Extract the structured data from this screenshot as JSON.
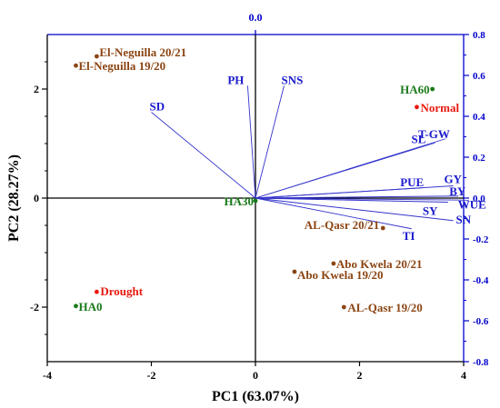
{
  "chart_data": {
    "type": "biplot",
    "xlabel": "PC1 (63.07%)",
    "ylabel": "PC2 (28.27%)",
    "xlim": [
      -4,
      4
    ],
    "ylim": [
      -3,
      3
    ],
    "xticks": [
      -4,
      -2,
      0,
      2,
      4
    ],
    "yticks": [
      -2,
      0,
      2
    ],
    "top_axis_label": "0.0",
    "right_lim": [
      -0.8,
      0.8
    ],
    "right_ticks": [
      "-0.8",
      "-0.6",
      "-0.4",
      "-0.2",
      "0.0",
      "0.2",
      "0.4",
      "0.6",
      "0.8"
    ],
    "scores": [
      {
        "label": "El-Neguilla 20/21",
        "x": -3.05,
        "y": 2.6,
        "color": "#8b4513"
      },
      {
        "label": "El-Neguilla 19/20",
        "x": -3.45,
        "y": 2.43,
        "color": "#8b4513"
      },
      {
        "label": "HA60",
        "x": 3.4,
        "y": 2.0,
        "color": "#1a7a1a"
      },
      {
        "label": "Normal",
        "x": 3.1,
        "y": 1.67,
        "color": "#e8190f"
      },
      {
        "label": "HA30",
        "x": 0.0,
        "y": -0.05,
        "color": "#1a7a1a"
      },
      {
        "label": "AL-Qasr 20/21",
        "x": 2.45,
        "y": -0.55,
        "color": "#8b4513"
      },
      {
        "label": "Abo Kwela 20/21",
        "x": 1.5,
        "y": -1.2,
        "color": "#8b4513"
      },
      {
        "label": "Abo Kwela 19/20",
        "x": 0.75,
        "y": -1.35,
        "color": "#8b4513"
      },
      {
        "label": "Drought",
        "x": -3.05,
        "y": -1.72,
        "color": "#e8190f"
      },
      {
        "label": "HA0",
        "x": -3.45,
        "y": -1.98,
        "color": "#1a7a1a"
      },
      {
        "label": "AL-Qasr 19/20",
        "x": 1.7,
        "y": -2.0,
        "color": "#8b4513"
      }
    ],
    "loadings": [
      {
        "label": "PH",
        "x": -0.03,
        "y": 0.55
      },
      {
        "label": "SNS",
        "x": 0.11,
        "y": 0.55
      },
      {
        "label": "SD",
        "x": -0.4,
        "y": 0.42
      },
      {
        "label": "T-GW",
        "x": 0.73,
        "y": 0.29
      },
      {
        "label": "SL",
        "x": 0.69,
        "y": 0.27
      },
      {
        "label": "PUE",
        "x": 0.64,
        "y": 0.05
      },
      {
        "label": "GY",
        "x": 0.76,
        "y": 0.06
      },
      {
        "label": "BY",
        "x": 0.78,
        "y": 0.01
      },
      {
        "label": "WUE",
        "x": 0.82,
        "y": -0.01
      },
      {
        "label": "SY",
        "x": 0.74,
        "y": -0.02
      },
      {
        "label": "SN",
        "x": 0.76,
        "y": -0.11
      },
      {
        "label": "TI",
        "x": 0.6,
        "y": -0.15
      }
    ],
    "colors": {
      "axis_left_bottom": "#000000",
      "axis_top_right": "#0000cc",
      "loading_line": "#3333cc",
      "loading_text": "#1a1acc"
    }
  }
}
